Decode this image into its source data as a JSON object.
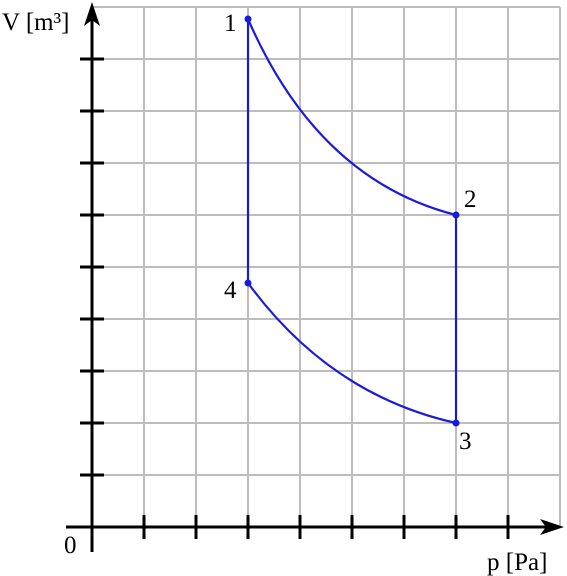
{
  "axes": {
    "y_label": "V [m³]",
    "x_label": "p [Pa]",
    "origin": "0"
  },
  "points": [
    {
      "label": "1"
    },
    {
      "label": "2"
    },
    {
      "label": "3"
    },
    {
      "label": "4"
    }
  ]
}
